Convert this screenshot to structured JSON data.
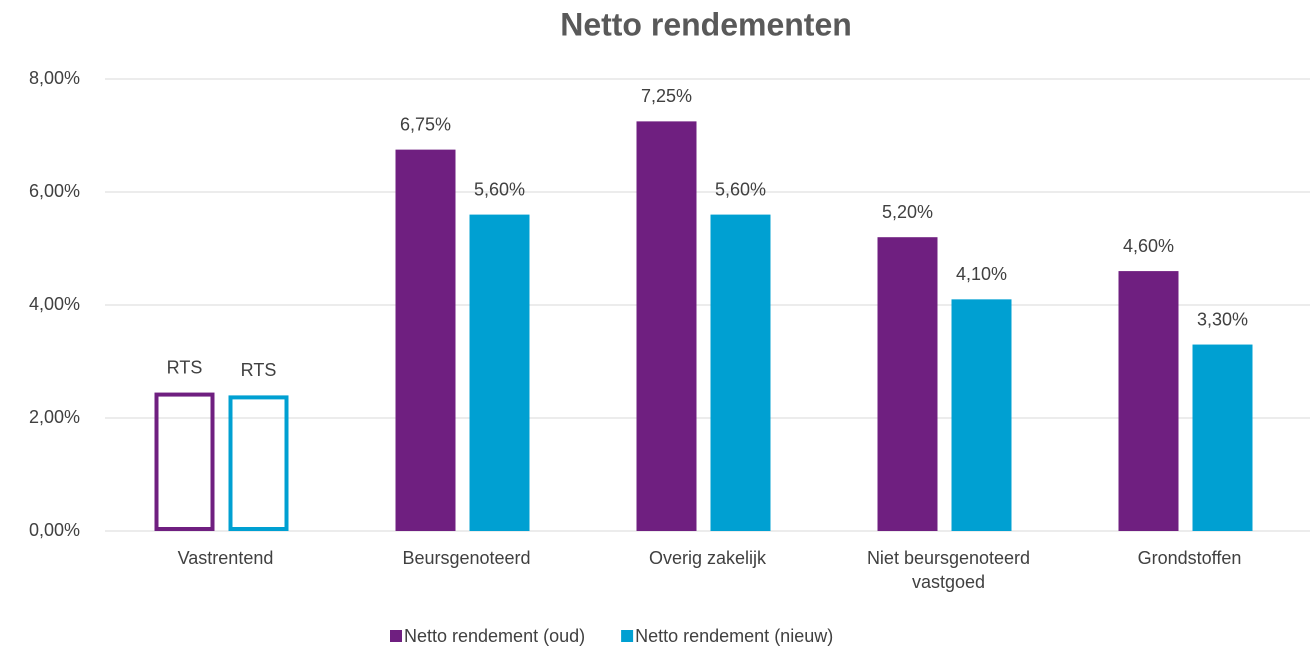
{
  "chart_data": {
    "type": "bar",
    "title": "Netto rendementen",
    "categories": [
      "Vastrentend",
      "Beursgenoteerd",
      "Overig zakelijk",
      "Niet beursgenoteerd vastgoed",
      "Grondstoffen"
    ],
    "outlined": [
      true,
      false,
      false,
      false,
      false
    ],
    "series": [
      {
        "name": "Netto rendement (oud)",
        "color": "#6f1f80",
        "values": [
          2.45,
          6.75,
          7.25,
          5.2,
          4.6
        ],
        "value_labels": [
          "RTS",
          "6,75%",
          "7,25%",
          "5,20%",
          "4,60%"
        ]
      },
      {
        "name": "Netto rendement (nieuw)",
        "color": "#00a0d2",
        "values": [
          2.4,
          5.6,
          5.6,
          4.1,
          3.3
        ],
        "value_labels": [
          "RTS",
          "5,60%",
          "5,60%",
          "4,10%",
          "3,30%"
        ]
      }
    ],
    "ylim": [
      0,
      8
    ],
    "yticks": [
      {
        "value": 0,
        "label": "0,00%"
      },
      {
        "value": 2,
        "label": "2,00%"
      },
      {
        "value": 4,
        "label": "4,00%"
      },
      {
        "value": 6,
        "label": "6,00%"
      },
      {
        "value": 8,
        "label": "8,00%"
      }
    ],
    "grid": true
  }
}
